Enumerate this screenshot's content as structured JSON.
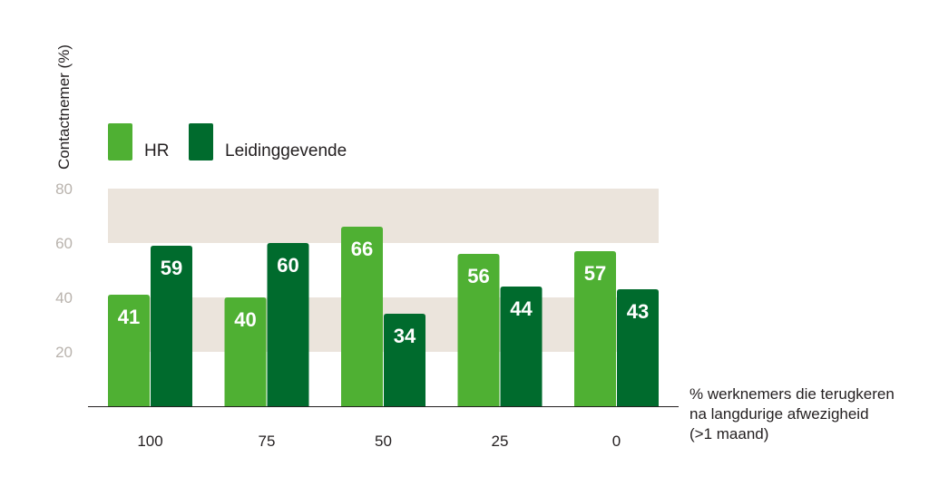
{
  "chart_data": {
    "type": "bar",
    "ylabel": "Contactnemer (%)",
    "xlabel_lines": [
      "% werknemers die terugkeren",
      "na langdurige afwezigheid",
      "(>1 maand)"
    ],
    "categories": [
      "100",
      "75",
      "50",
      "25",
      "0"
    ],
    "series": [
      {
        "name": "HR",
        "color": "#4fb033",
        "values": [
          41,
          40,
          66,
          56,
          57
        ]
      },
      {
        "name": "Leidinggevende",
        "color": "#006b2d",
        "values": [
          59,
          60,
          34,
          44,
          43
        ]
      }
    ],
    "ylim": [
      0,
      80
    ],
    "yticks": [
      20,
      40,
      60,
      80
    ],
    "bands": [
      [
        20,
        40
      ],
      [
        60,
        80
      ]
    ],
    "band_color": "#ebe4dc",
    "legend_position": "top-left",
    "grid": false
  }
}
